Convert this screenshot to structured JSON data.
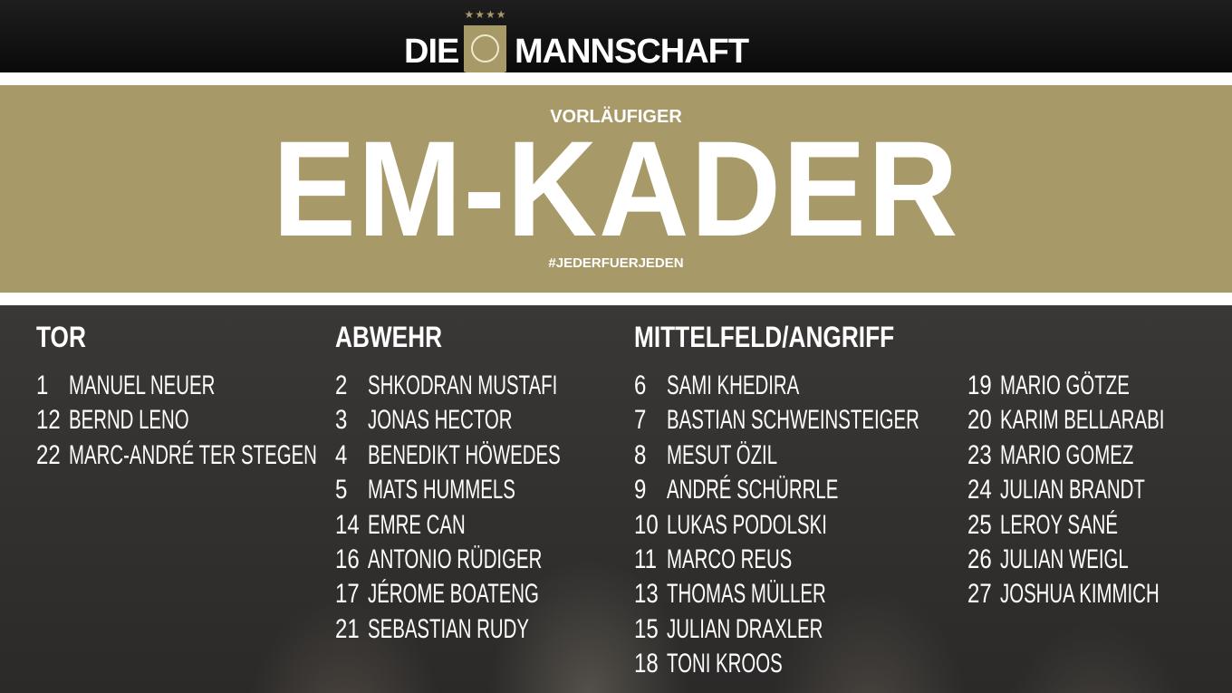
{
  "header": {
    "brand_left": "DIE",
    "brand_right": "MANNSCHAFT",
    "stars": "★★★★"
  },
  "banner": {
    "pre_title": "VORLÄUFIGER",
    "title": "EM-KADER",
    "hashtag": "#JEDERFUERJEDEN"
  },
  "colors": {
    "gold": "#a89a68",
    "black": "#0a0a0a"
  },
  "columns": [
    {
      "heading": "TOR",
      "players": [
        {
          "num": "1",
          "name": "MANUEL NEUER"
        },
        {
          "num": "12",
          "name": "BERND LENO"
        },
        {
          "num": "22",
          "name": "MARC-ANDRÉ TER STEGEN"
        }
      ]
    },
    {
      "heading": "ABWEHR",
      "players": [
        {
          "num": "2",
          "name": "SHKODRAN MUSTAFI"
        },
        {
          "num": "3",
          "name": "JONAS HECTOR"
        },
        {
          "num": "4",
          "name": "BENEDIKT HÖWEDES"
        },
        {
          "num": "5",
          "name": "MATS HUMMELS"
        },
        {
          "num": "14",
          "name": "EMRE CAN"
        },
        {
          "num": "16",
          "name": "ANTONIO RÜDIGER"
        },
        {
          "num": "17",
          "name": "JÉROME BOATENG"
        },
        {
          "num": "21",
          "name": "SEBASTIAN RUDY"
        }
      ]
    },
    {
      "heading": "MITTELFELD/ANGRIFF",
      "players": [
        {
          "num": "6",
          "name": "SAMI KHEDIRA"
        },
        {
          "num": "7",
          "name": "BASTIAN SCHWEINSTEIGER"
        },
        {
          "num": "8",
          "name": "MESUT ÖZIL"
        },
        {
          "num": "9",
          "name": "ANDRÉ SCHÜRRLE"
        },
        {
          "num": "10",
          "name": "LUKAS PODOLSKI"
        },
        {
          "num": "11",
          "name": "MARCO REUS"
        },
        {
          "num": "13",
          "name": "THOMAS MÜLLER"
        },
        {
          "num": "15",
          "name": "JULIAN DRAXLER"
        },
        {
          "num": "18",
          "name": "TONI KROOS"
        }
      ]
    },
    {
      "heading": "",
      "players": [
        {
          "num": "19",
          "name": "MARIO GÖTZE"
        },
        {
          "num": "20",
          "name": "KARIM BELLARABI"
        },
        {
          "num": "23",
          "name": "MARIO GOMEZ"
        },
        {
          "num": "24",
          "name": "JULIAN BRANDT"
        },
        {
          "num": "25",
          "name": "LEROY SANÉ"
        },
        {
          "num": "26",
          "name": "JULIAN WEIGL"
        },
        {
          "num": "27",
          "name": "JOSHUA KIMMICH"
        }
      ]
    }
  ]
}
